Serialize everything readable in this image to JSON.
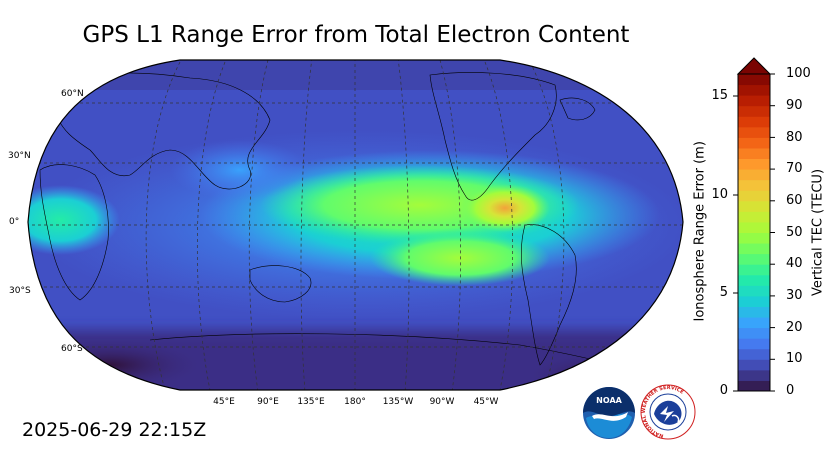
{
  "title": "GPS L1 Range Error from Total Electron Content",
  "timestamp": "2025-06-29 22:15Z",
  "map": {
    "projection": "Robinson",
    "central_longitude": 180,
    "lat_labels": [
      "60°N",
      "30°N",
      "0°",
      "30°S",
      "60°S"
    ],
    "lon_labels": [
      "45°E",
      "90°E",
      "135°E",
      "180°",
      "135°W",
      "90°W",
      "45°W"
    ],
    "gridlines": "dashed"
  },
  "colorbar": {
    "left_axis_label": "Ionosphere Range Error (m)",
    "right_axis_label": "Vertical TEC (TECU)",
    "left_ticks": [
      "0",
      "5",
      "10",
      "15"
    ],
    "right_ticks": [
      "0",
      "10",
      "20",
      "30",
      "40",
      "50",
      "60",
      "70",
      "80",
      "90",
      "100"
    ],
    "tec_range": [
      0,
      100
    ],
    "range_error_range": [
      0,
      16.2
    ],
    "extend": "max",
    "colormap": "turbo",
    "colors": [
      "#30123b",
      "#4145ab",
      "#4675ed",
      "#39a2fc",
      "#1bcfd4",
      "#24eca6",
      "#61fc6c",
      "#a4fc3b",
      "#d1e834",
      "#f3c63a",
      "#fe9b2d",
      "#f36315",
      "#d93806",
      "#b11901",
      "#7a0402"
    ]
  },
  "logos": {
    "noaa_text": "NOAA",
    "nws_text": "NATIONAL WEATHER SERVICE"
  }
}
